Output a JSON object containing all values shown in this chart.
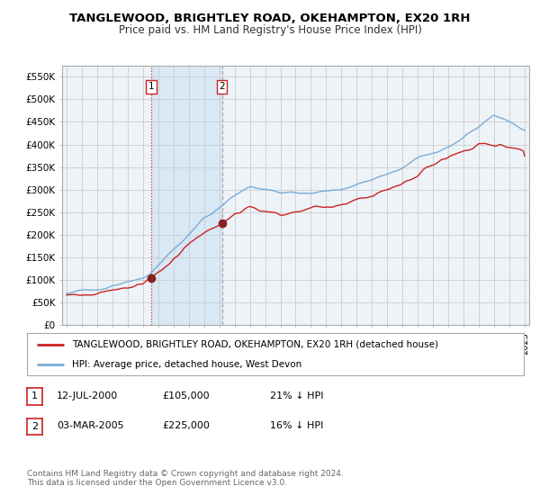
{
  "title": "TANGLEWOOD, BRIGHTLEY ROAD, OKEHAMPTON, EX20 1RH",
  "subtitle": "Price paid vs. HM Land Registry's House Price Index (HPI)",
  "ylim": [
    0,
    575000
  ],
  "xlim_start": 1994.7,
  "xlim_end": 2025.3,
  "sale1_date": 2000.53,
  "sale1_price": 105000,
  "sale2_date": 2005.17,
  "sale2_price": 225000,
  "legend_entries": [
    "TANGLEWOOD, BRIGHTLEY ROAD, OKEHAMPTON, EX20 1RH (detached house)",
    "HPI: Average price, detached house, West Devon"
  ],
  "footer_line1": "Contains HM Land Registry data © Crown copyright and database right 2024.",
  "footer_line2": "This data is licensed under the Open Government Licence v3.0.",
  "table_rows": [
    {
      "num": "1",
      "date": "12-JUL-2000",
      "price": "£105,000",
      "hpi": "21% ↓ HPI"
    },
    {
      "num": "2",
      "date": "03-MAR-2005",
      "price": "£225,000",
      "hpi": "16% ↓ HPI"
    }
  ],
  "hpi_color": "#7aacd6",
  "price_color": "#cc2222",
  "sale_dot_color": "#882222",
  "bg_color": "#ffffff",
  "plot_bg_color": "#eef3f8",
  "shade_color": "#d0e4f5",
  "grid_color": "#cccccc",
  "vline1_color": "#cc3333",
  "vline2_color": "#aaaaaa"
}
